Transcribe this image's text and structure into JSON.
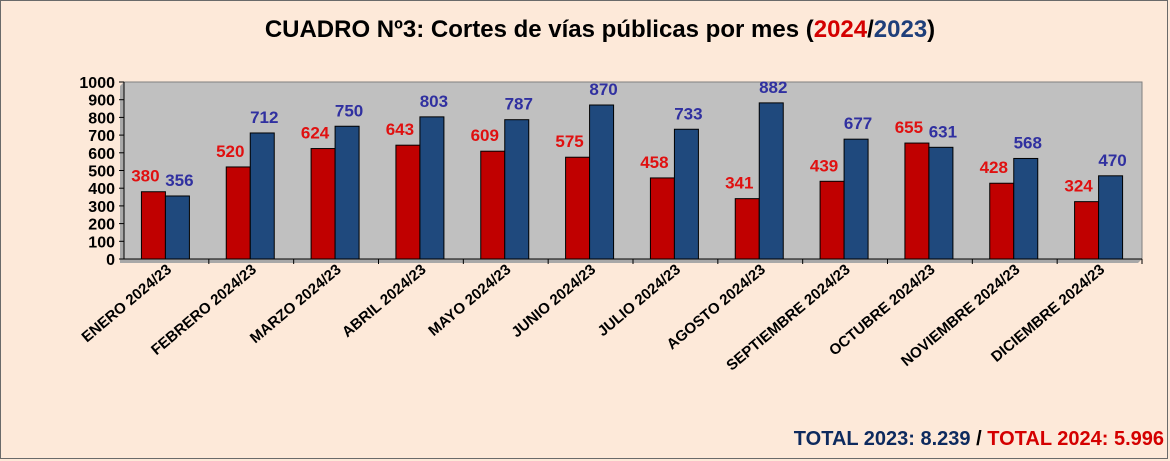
{
  "title": {
    "prefix": "CUADRO Nº3: Cortes de vías públicas por mes (",
    "year_a": "2024",
    "slash": "/",
    "year_b": "2023",
    "suffix": ")"
  },
  "totals": {
    "t2023": "TOTAL 2023: 8.239",
    "sep": " / ",
    "t2024": "TOTAL 2024: 5.996"
  },
  "colors": {
    "s2024": "#c00000",
    "s2023": "#1f497d",
    "label2024": "#e01010",
    "label2023": "#3030a0",
    "plot_bg": "#c0c0c0"
  },
  "chart_data": {
    "type": "bar",
    "categories": [
      "ENERO 2024/23",
      "FEBRERO 2024/23",
      "MARZO 2024/23",
      "ABRIL 2024/23",
      "MAYO 2024/23",
      "JUNIO 2024/23",
      "JULIO 2024/23",
      "AGOSTO 2024/23",
      "SEPTIEMBRE 2024/23",
      "OCTUBRE 2024/23",
      "NOVIEMBRE 2024/23",
      "DICIEMBRE 2024/23"
    ],
    "series": [
      {
        "name": "2024",
        "values": [
          380,
          520,
          624,
          643,
          609,
          575,
          458,
          341,
          439,
          655,
          428,
          324
        ]
      },
      {
        "name": "2023",
        "values": [
          356,
          712,
          750,
          803,
          787,
          870,
          733,
          882,
          677,
          631,
          568,
          470
        ]
      }
    ],
    "ylim": [
      0,
      1000
    ],
    "yticks": [
      0,
      100,
      200,
      300,
      400,
      500,
      600,
      700,
      800,
      900,
      1000
    ],
    "grid": false,
    "legend": "none",
    "data_labels": true
  }
}
